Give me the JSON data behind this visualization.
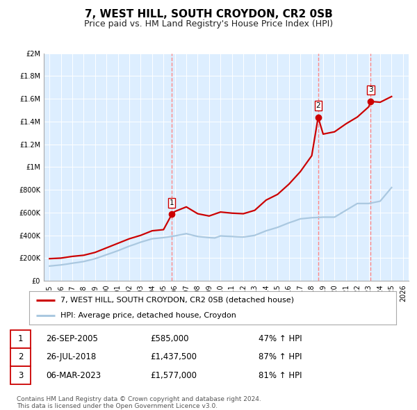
{
  "title": "7, WEST HILL, SOUTH CROYDON, CR2 0SB",
  "subtitle": "Price paid vs. HM Land Registry's House Price Index (HPI)",
  "xlabel": "",
  "ylabel": "",
  "bg_color": "#ffffff",
  "plot_bg_color": "#ddeeff",
  "grid_color": "#ffffff",
  "ylim": [
    0,
    2000000
  ],
  "yticks": [
    0,
    200000,
    400000,
    600000,
    800000,
    1000000,
    1200000,
    1400000,
    1600000,
    1800000,
    2000000
  ],
  "ytick_labels": [
    "£0",
    "£200K",
    "£400K",
    "£600K",
    "£800K",
    "£1M",
    "£1.2M",
    "£1.4M",
    "£1.6M",
    "£1.8M",
    "£2M"
  ],
  "xlim_start": 1994.5,
  "xlim_end": 2026.5,
  "hpi_color": "#aac8e0",
  "property_color": "#cc0000",
  "sale_marker_color": "#cc0000",
  "vline_color": "#ff8888",
  "vline_style": "--",
  "sales": [
    {
      "label": "1",
      "date_num": 2005.73,
      "price": 585000,
      "date_str": "26-SEP-2005",
      "price_str": "£585,000",
      "hpi_str": "47% ↑ HPI"
    },
    {
      "label": "2",
      "date_num": 2018.56,
      "price": 1437500,
      "date_str": "26-JUL-2018",
      "price_str": "£1,437,500",
      "hpi_str": "87% ↑ HPI"
    },
    {
      "label": "3",
      "date_num": 2023.17,
      "price": 1577000,
      "date_str": "06-MAR-2023",
      "price_str": "£1,577,000",
      "hpi_str": "81% ↑ HPI"
    }
  ],
  "hpi_line": {
    "x": [
      1995,
      1995.5,
      1996,
      1996.5,
      1997,
      1997.5,
      1998,
      1998.5,
      1999,
      1999.5,
      2000,
      2000.5,
      2001,
      2001.5,
      2002,
      2002.5,
      2003,
      2003.5,
      2004,
      2004.5,
      2005,
      2005.5,
      2006,
      2006.5,
      2007,
      2007.5,
      2008,
      2008.5,
      2009,
      2009.5,
      2010,
      2010.5,
      2011,
      2011.5,
      2012,
      2012.5,
      2013,
      2013.5,
      2014,
      2014.5,
      2015,
      2015.5,
      2016,
      2016.5,
      2017,
      2017.5,
      2018,
      2018.5,
      2019,
      2019.5,
      2020,
      2020.5,
      2021,
      2021.5,
      2022,
      2022.5,
      2023,
      2023.5,
      2024,
      2024.5,
      2025
    ],
    "y": [
      130000,
      135000,
      140000,
      147000,
      155000,
      162000,
      170000,
      182000,
      195000,
      212000,
      230000,
      247000,
      265000,
      285000,
      305000,
      322000,
      340000,
      355000,
      370000,
      375000,
      380000,
      387000,
      395000,
      405000,
      415000,
      402000,
      390000,
      385000,
      380000,
      377000,
      395000,
      392000,
      390000,
      387000,
      385000,
      392000,
      400000,
      420000,
      440000,
      455000,
      470000,
      490000,
      510000,
      527000,
      545000,
      550000,
      555000,
      557000,
      560000,
      560000,
      560000,
      590000,
      620000,
      650000,
      680000,
      680000,
      680000,
      690000,
      700000,
      760000,
      820000
    ]
  },
  "property_line": {
    "x": [
      1995,
      1996,
      1997,
      1998,
      1999,
      2000,
      2001,
      2002,
      2003,
      2004,
      2005,
      2005.73,
      2006,
      2007,
      2008,
      2009,
      2010,
      2011,
      2012,
      2013,
      2014,
      2015,
      2016,
      2017,
      2018,
      2018.56,
      2019,
      2020,
      2021,
      2022,
      2023,
      2023.17,
      2024,
      2025
    ],
    "y": [
      195000,
      200000,
      215000,
      225000,
      250000,
      290000,
      330000,
      370000,
      400000,
      440000,
      450000,
      585000,
      610000,
      650000,
      590000,
      570000,
      605000,
      595000,
      590000,
      620000,
      710000,
      760000,
      850000,
      960000,
      1100000,
      1437500,
      1290000,
      1310000,
      1380000,
      1440000,
      1530000,
      1577000,
      1570000,
      1620000
    ]
  },
  "legend_label_property": "7, WEST HILL, SOUTH CROYDON, CR2 0SB (detached house)",
  "legend_label_hpi": "HPI: Average price, detached house, Croydon",
  "footnote": "Contains HM Land Registry data © Crown copyright and database right 2024.\nThis data is licensed under the Open Government Licence v3.0.",
  "title_fontsize": 11,
  "subtitle_fontsize": 9,
  "tick_fontsize": 7,
  "legend_fontsize": 8,
  "table_fontsize": 8.5
}
